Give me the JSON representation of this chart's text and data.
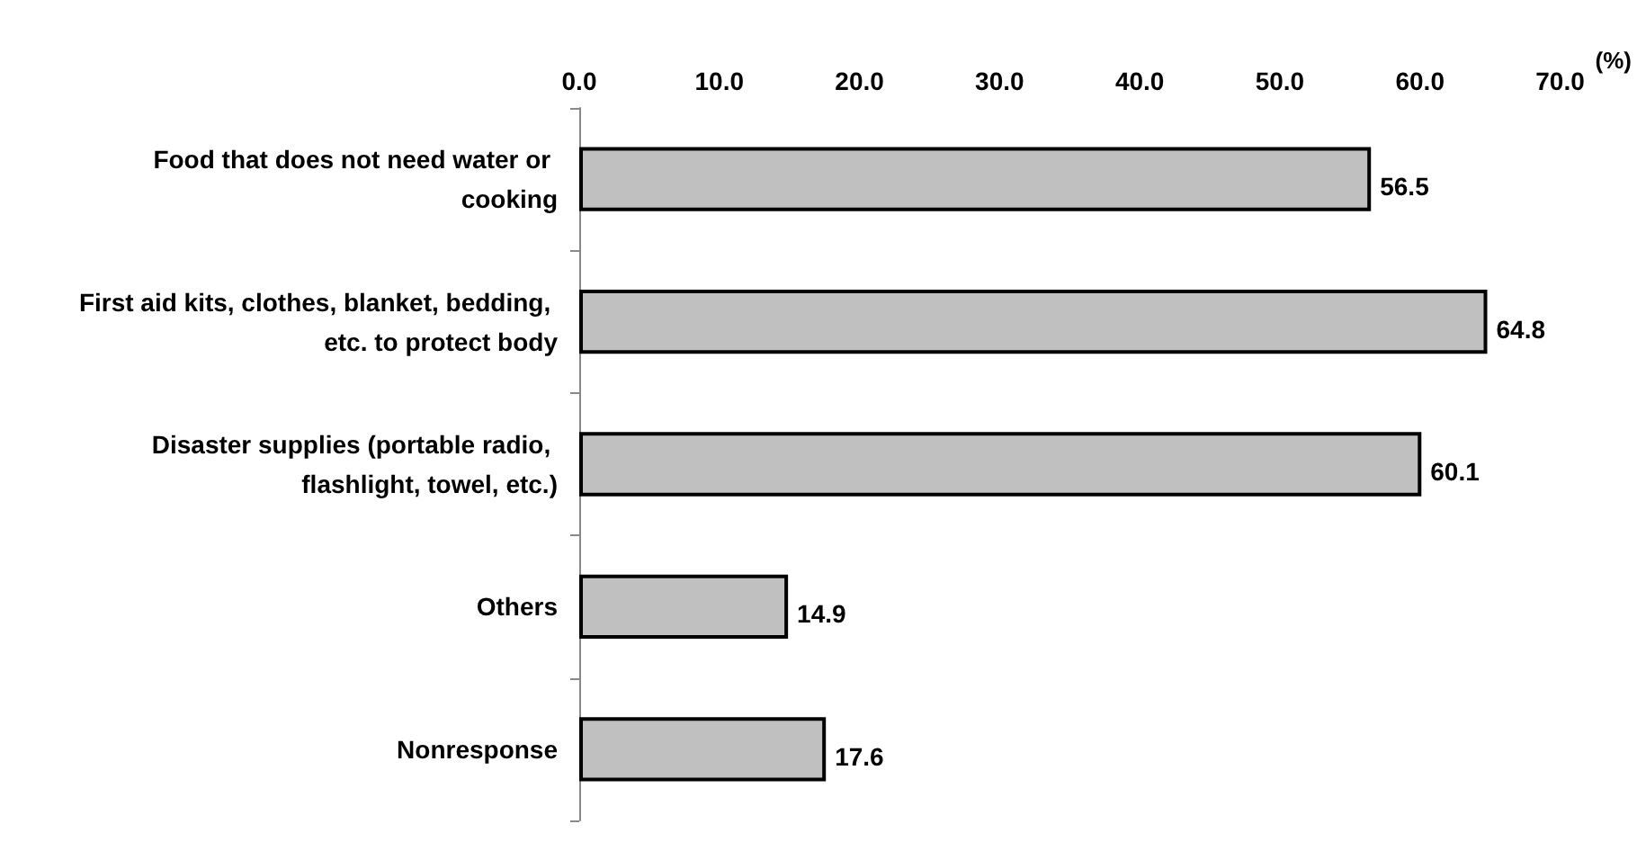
{
  "chart_data": {
    "type": "bar",
    "orientation": "horizontal",
    "xlabel": "(%)",
    "categories": [
      "Food that does not need water or cooking",
      "First aid kits, clothes, blanket, bedding, etc. to protect body",
      "Disaster supplies (portable radio, flashlight, towel, etc.)",
      "Others",
      "Nonresponse"
    ],
    "values": [
      56.5,
      64.8,
      60.1,
      14.9,
      17.6
    ],
    "color": "#c0c0c0",
    "data_labels": true,
    "xlim": [
      0,
      70
    ],
    "xticks": [
      {
        "value": 0,
        "label": "0.0"
      },
      {
        "value": 10,
        "label": "10.0"
      },
      {
        "value": 20,
        "label": "20.0"
      },
      {
        "value": 30,
        "label": "30.0"
      },
      {
        "value": 40,
        "label": "40.0"
      },
      {
        "value": 50,
        "label": "50.0"
      },
      {
        "value": 60,
        "label": "60.0"
      },
      {
        "value": 70,
        "label": "70.0"
      }
    ]
  }
}
